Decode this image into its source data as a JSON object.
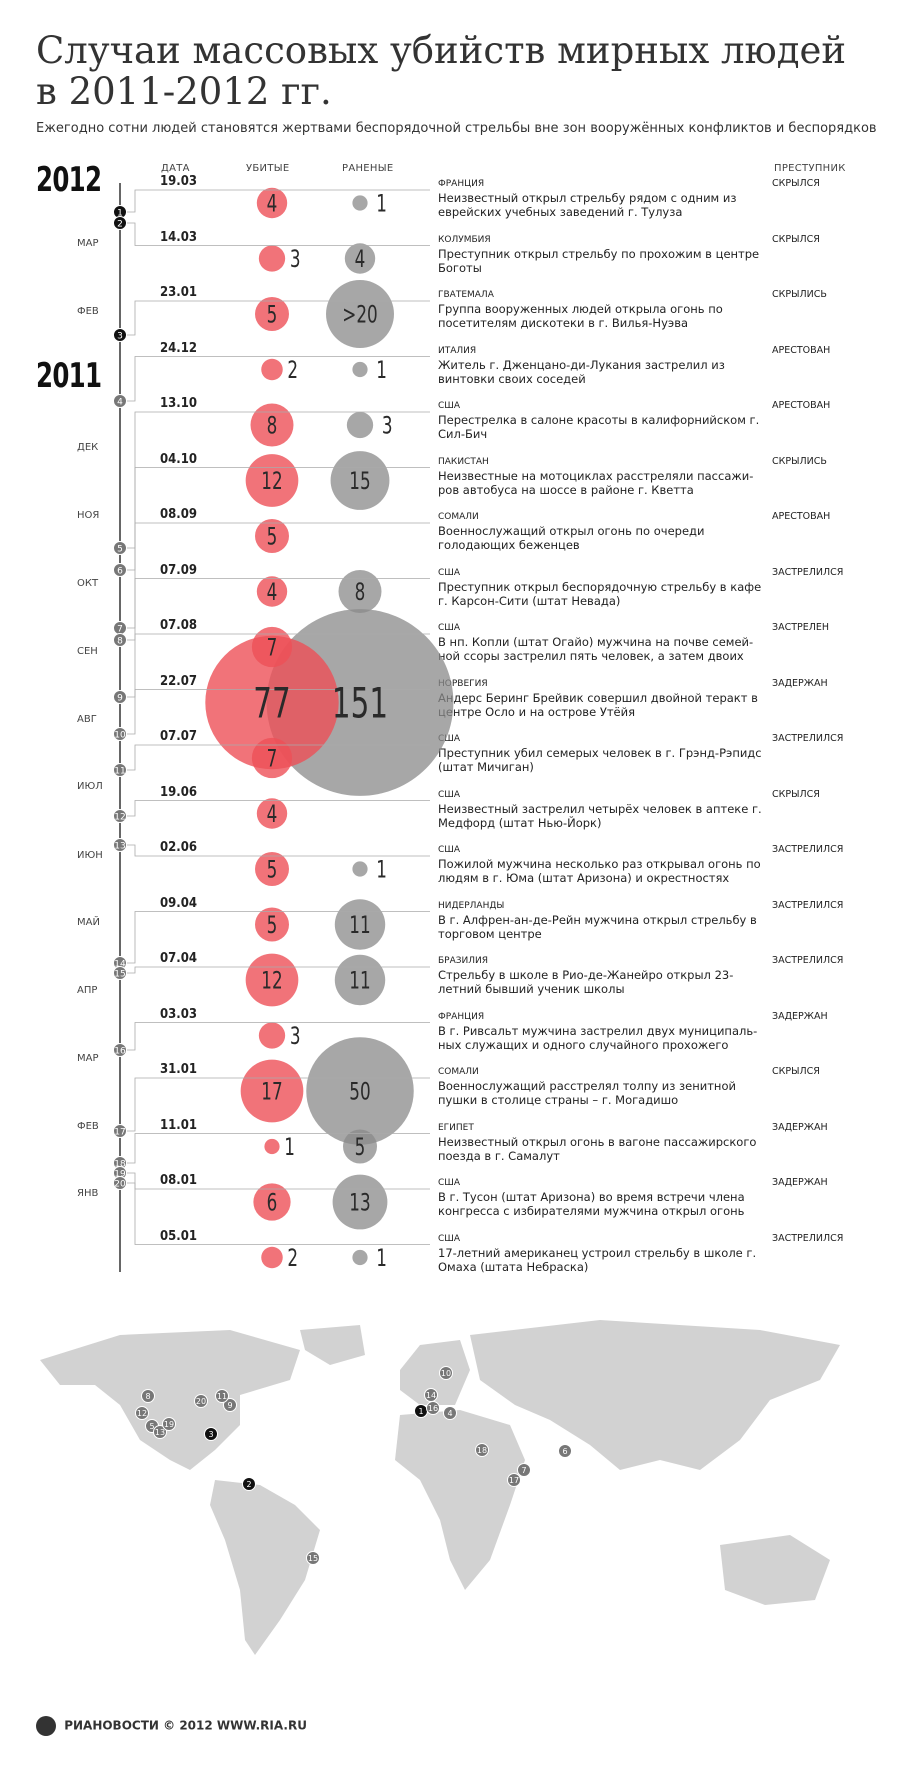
{
  "title": "Случаи массовых убийств мирных людей в 2011-2012 гг.",
  "subtitle": "Ежегодно сотни людей становятся жертвами беспорядочной стрельбы вне зон вооружённых конфликтов и беспорядков",
  "columns": {
    "date": "ДАТА",
    "killed": "УБИТЫЕ",
    "wounded": "РАНЕНЫЕ",
    "perpetrator": "ПРЕСТУПНИК"
  },
  "years": [
    "2012",
    "2011"
  ],
  "months": [
    "МАР",
    "ФЕВ",
    "ДЕК",
    "НОЯ",
    "ОКТ",
    "СЕН",
    "АВГ",
    "ИЮЛ",
    "ИЮН",
    "МАЙ",
    "АПР",
    "МАР",
    "ФЕВ",
    "ЯНВ"
  ],
  "colors": {
    "killed": "#ee5057",
    "wounded": "#8a8a8a",
    "marker": "#777777",
    "marker_2012": "#111111",
    "map": "#d2d2d2"
  },
  "events": [
    {
      "n": "1",
      "date": "19.03",
      "killed": 4,
      "wounded": 1,
      "wounded_label": "1",
      "country": "ФРАНЦИЯ",
      "desc": "Неизвестный открыл стрельбу рядом с одним из еврейских учебных заведений г. Тулуза",
      "fate": "СКРЫЛСЯ"
    },
    {
      "n": "2",
      "date": "14.03",
      "killed": 3,
      "wounded": 4,
      "wounded_label": "4",
      "country": "КОЛУМБИЯ",
      "desc": "Преступник открыл стрельбу по прохожим в центре Боготы",
      "fate": "СКРЫЛСЯ"
    },
    {
      "n": "3",
      "date": "23.01",
      "killed": 5,
      "wounded": 20,
      "wounded_label": ">20",
      "country": "ГВАТЕМАЛА",
      "desc": "Группа вооруженных людей открыла огонь по посетителям дискотеки в г. Вилья-Нуэва",
      "fate": "СКРЫЛИСЬ"
    },
    {
      "n": "4",
      "date": "24.12",
      "killed": 2,
      "wounded": 1,
      "wounded_label": "1",
      "country": "ИТАЛИЯ",
      "desc": "Житель г. Дженцано-ди-Лукания застрелил из винтовки своих соседей",
      "fate": "АРЕСТОВАН"
    },
    {
      "n": "5",
      "date": "13.10",
      "killed": 8,
      "wounded": 3,
      "wounded_label": "3",
      "country": "США",
      "desc": "Перестрелка в салоне красоты в калифорнийском г. Сил-Бич",
      "fate": "АРЕСТОВАН"
    },
    {
      "n": "6",
      "date": "04.10",
      "killed": 12,
      "wounded": 15,
      "wounded_label": "15",
      "country": "ПАКИСТАН",
      "desc": "Неизвестные на мотоциклах расстреляли пассажи-ров автобуса на шоссе в районе г. Кветта",
      "fate": "СКРЫЛИСЬ"
    },
    {
      "n": "7",
      "date": "08.09",
      "killed": 5,
      "wounded": 0,
      "wounded_label": "",
      "country": "СОМАЛИ",
      "desc": "Военнослужащий открыл огонь по очереди голодающих беженцев",
      "fate": "АРЕСТОВАН"
    },
    {
      "n": "8",
      "date": "07.09",
      "killed": 4,
      "wounded": 8,
      "wounded_label": "8",
      "country": "США",
      "desc": "Преступник открыл беспорядочную стрельбу в кафе г. Карсон-Сити (штат Невада)",
      "fate": "ЗАСТРЕЛИЛСЯ"
    },
    {
      "n": "9",
      "date": "07.08",
      "killed": 7,
      "wounded": 0,
      "wounded_label": "",
      "country": "США",
      "desc": "В нп. Копли (штат Огайо) мужчина на почве семей-ной ссоры застрелил пять человек, а затем двоих",
      "fate": "ЗАСТРЕЛЕН"
    },
    {
      "n": "10",
      "date": "22.07",
      "killed": 77,
      "wounded": 151,
      "wounded_label": "151",
      "country": "НОРВЕГИЯ",
      "desc": "Андерс Беринг Брейвик совершил двойной теракт в центре Осло и на острове Утёйя",
      "fate": "ЗАДЕРЖАН"
    },
    {
      "n": "11",
      "date": "07.07",
      "killed": 7,
      "wounded": 0,
      "wounded_label": "",
      "country": "США",
      "desc": "Преступник убил семерых человек в г. Грэнд-Рэпидс (штат Мичиган)",
      "fate": "ЗАСТРЕЛИЛСЯ"
    },
    {
      "n": "12",
      "date": "19.06",
      "killed": 4,
      "wounded": 0,
      "wounded_label": "",
      "country": "США",
      "desc": "Неизвестный застрелил четырёх человек в аптеке г. Медфорд (штат Нью-Йорк)",
      "fate": "СКРЫЛСЯ"
    },
    {
      "n": "13",
      "date": "02.06",
      "killed": 5,
      "wounded": 1,
      "wounded_label": "1",
      "country": "США",
      "desc": "Пожилой мужчина несколько раз открывал огонь по людям в г. Юма (штат Аризона) и окрестностях",
      "fate": "ЗАСТРЕЛИЛСЯ"
    },
    {
      "n": "14",
      "date": "09.04",
      "killed": 5,
      "wounded": 11,
      "wounded_label": "11",
      "country": "НИДЕРЛАНДЫ",
      "desc": "В г. Алфрен-ан-де-Рейн мужчина открыл стрельбу в торговом центре",
      "fate": "ЗАСТРЕЛИЛСЯ"
    },
    {
      "n": "15",
      "date": "07.04",
      "killed": 12,
      "wounded": 11,
      "wounded_label": "11",
      "country": "БРАЗИЛИЯ",
      "desc": "Стрельбу в школе в Рио-де-Жанейро открыл 23-летний бывший ученик школы",
      "fate": "ЗАСТРЕЛИЛСЯ"
    },
    {
      "n": "16",
      "date": "03.03",
      "killed": 3,
      "wounded": 0,
      "wounded_label": "",
      "country": "ФРАНЦИЯ",
      "desc": "В г. Ривсальт мужчина застрелил двух муниципаль-ных служащих и одного случайного прохожего",
      "fate": "ЗАДЕРЖАН"
    },
    {
      "n": "17",
      "date": "31.01",
      "killed": 17,
      "wounded": 50,
      "wounded_label": "50",
      "country": "СОМАЛИ",
      "desc": "Военнослужащий расстрелял толпу из зенитной пушки в столице страны – г. Могадишо",
      "fate": "СКРЫЛСЯ"
    },
    {
      "n": "18",
      "date": "11.01",
      "killed": 1,
      "wounded": 5,
      "wounded_label": "5",
      "country": "ЕГИПЕТ",
      "desc": "Неизвестный открыл огонь в вагоне пассажирского поезда в г. Самалут",
      "fate": "ЗАДЕРЖАН"
    },
    {
      "n": "19",
      "date": "08.01",
      "killed": 6,
      "wounded": 13,
      "wounded_label": "13",
      "country": "США",
      "desc": "В г. Тусон (штат Аризона) во время встречи члена конгресса с избирателями мужчина открыл огонь",
      "fate": "ЗАДЕРЖАН"
    },
    {
      "n": "20",
      "date": "05.01",
      "killed": 2,
      "wounded": 1,
      "wounded_label": "1",
      "country": "США",
      "desc": "17-летний американец устроил стрельбу в школе г. Омаха (штата Небраска)",
      "fate": "ЗАСТРЕЛИЛСЯ"
    }
  ],
  "chart_data": {
    "type": "bubble-timeline",
    "categories": [
      "19.03",
      "14.03",
      "23.01",
      "24.12",
      "13.10",
      "04.10",
      "08.09",
      "07.09",
      "07.08",
      "22.07",
      "07.07",
      "19.06",
      "02.06",
      "09.04",
      "07.04",
      "03.03",
      "31.01",
      "11.01",
      "08.01",
      "05.01"
    ],
    "series": [
      {
        "name": "УБИТЫЕ",
        "values": [
          4,
          3,
          5,
          2,
          8,
          12,
          5,
          4,
          7,
          77,
          7,
          4,
          5,
          5,
          12,
          3,
          17,
          1,
          6,
          2
        ]
      },
      {
        "name": "РАНЕНЫЕ",
        "values": [
          1,
          4,
          20,
          1,
          3,
          15,
          0,
          8,
          0,
          151,
          0,
          0,
          1,
          11,
          11,
          0,
          50,
          5,
          13,
          1
        ]
      }
    ]
  },
  "footer": {
    "brand": "РИАНОВОСТИ",
    "copyright": "© 2012 WWW.RIA.RU"
  }
}
